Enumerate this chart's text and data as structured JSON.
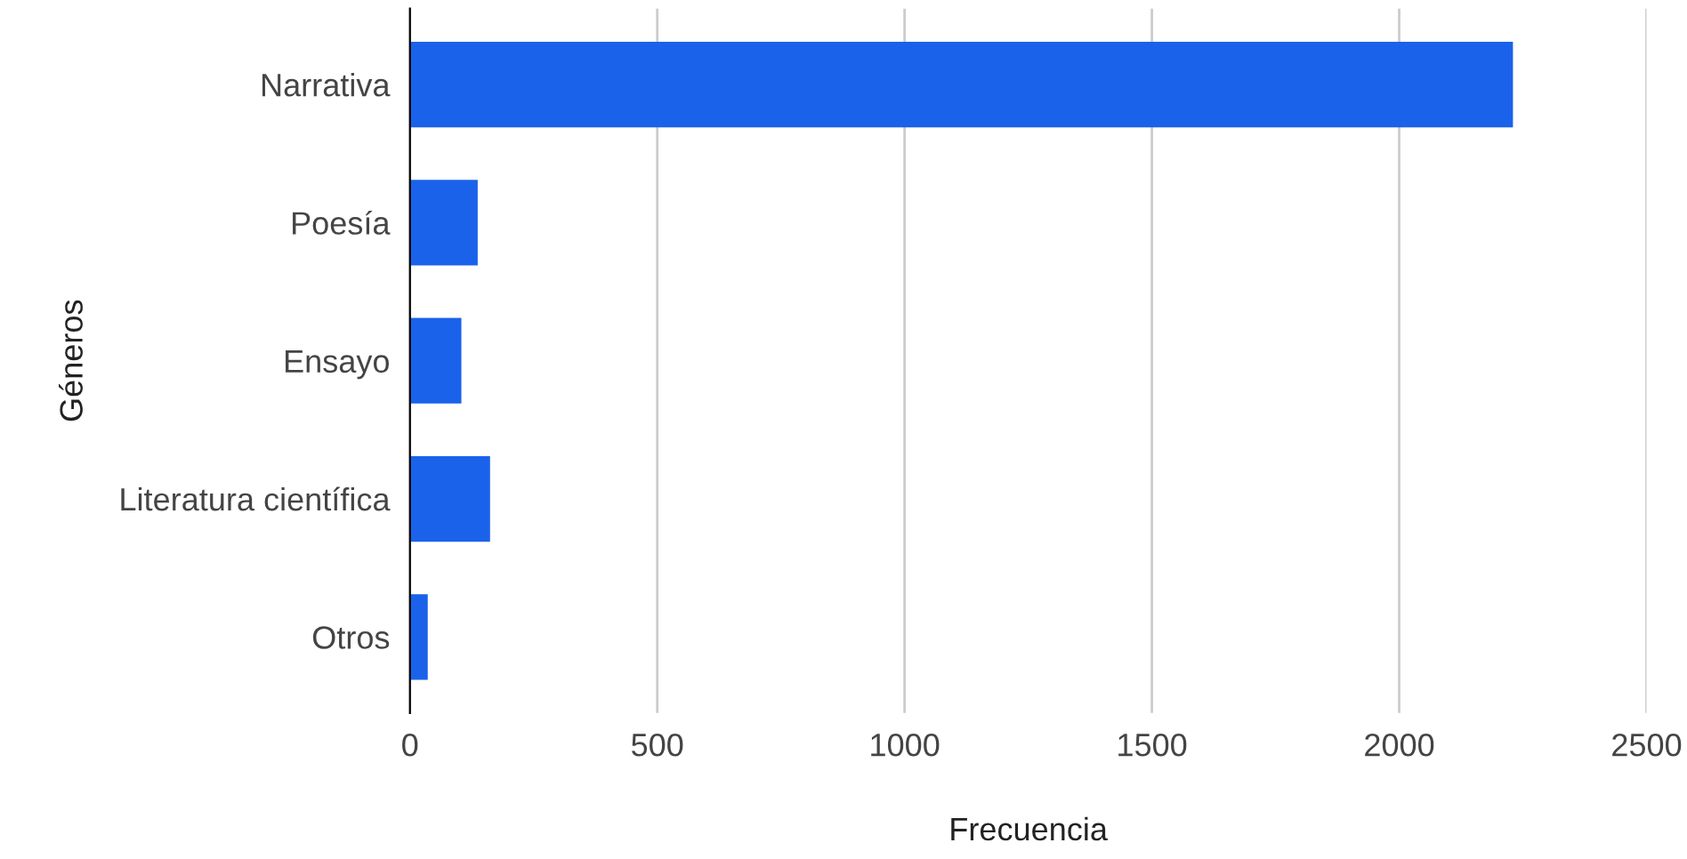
{
  "chart_data": {
    "type": "bar",
    "orientation": "horizontal",
    "xlabel": "Frecuencia",
    "ylabel": "Géneros",
    "categories": [
      "Narrativa",
      "Poesía",
      "Ensayo",
      "Literatura científica",
      "Otros"
    ],
    "values": [
      2230,
      137,
      104,
      162,
      36
    ],
    "color": "#1a62ea",
    "xlim": [
      0,
      2500
    ],
    "xticks": [
      0,
      500,
      1000,
      1500,
      2000,
      2500
    ],
    "grid": "x",
    "legend": false
  }
}
